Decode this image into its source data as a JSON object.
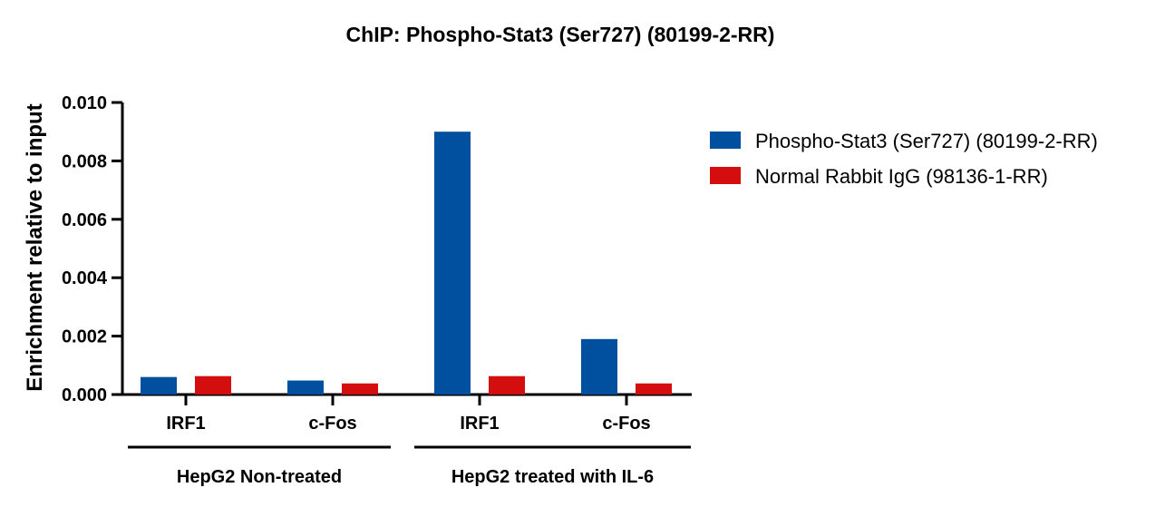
{
  "chart_data": {
    "type": "bar",
    "title": "ChIP: Phospho-Stat3 (Ser727) (80199-2-RR)",
    "xlabel": "",
    "ylabel": "Enrichment relative to input",
    "ylim": [
      0,
      0.01
    ],
    "yticks": [
      "0.000",
      "0.002",
      "0.004",
      "0.006",
      "0.008",
      "0.010"
    ],
    "categories": [
      "IRF1",
      "c-Fos",
      "IRF1",
      "c-Fos"
    ],
    "groups": [
      {
        "label": "HepG2 Non-treated",
        "categories": [
          0,
          1
        ]
      },
      {
        "label": "HepG2 treated with IL-6",
        "categories": [
          2,
          3
        ]
      }
    ],
    "series": [
      {
        "name": "Phospho-Stat3 (Ser727) (80199-2-RR)",
        "color": "#0050a0",
        "values": [
          0.0006,
          0.00048,
          0.009,
          0.0019
        ]
      },
      {
        "name": "Normal Rabbit IgG (98136-1-RR)",
        "color": "#d40e0e",
        "values": [
          0.00063,
          0.00038,
          0.00063,
          0.00038
        ]
      }
    ],
    "legend": "right",
    "grid": false
  }
}
